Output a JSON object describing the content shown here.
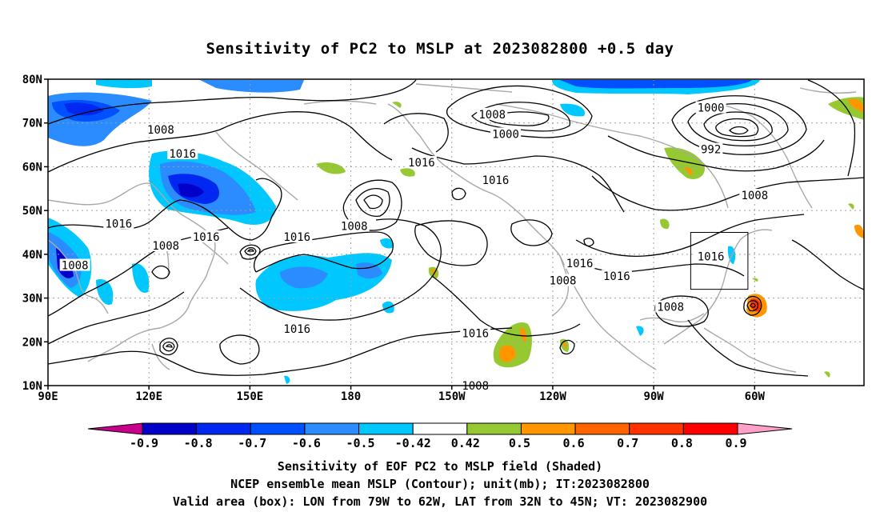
{
  "title": "Sensitivity of PC2 to MSLP at 2023082800 +0.5 day",
  "lat_labels": [
    "80N",
    "70N",
    "60N",
    "50N",
    "40N",
    "30N",
    "20N",
    "10N"
  ],
  "lon_labels": [
    "90E",
    "120E",
    "150E",
    "180",
    "150W",
    "120W",
    "90W",
    "60W"
  ],
  "contour_labels": [
    {
      "text": "1008",
      "lon": -138,
      "lat": 72
    },
    {
      "text": "1000",
      "lon": -134,
      "lat": 67.5
    },
    {
      "text": "1000",
      "lon": -73,
      "lat": 73.5
    },
    {
      "text": "992",
      "lon": -73,
      "lat": 64
    },
    {
      "text": "1008",
      "lon": 123.5,
      "lat": 68.5
    },
    {
      "text": "1016",
      "lon": 130,
      "lat": 63
    },
    {
      "text": "1016",
      "lon": -159,
      "lat": 61
    },
    {
      "text": "1016",
      "lon": -137,
      "lat": 57
    },
    {
      "text": "1008",
      "lon": -60,
      "lat": 53.5
    },
    {
      "text": "1016",
      "lon": 111,
      "lat": 47
    },
    {
      "text": "1016",
      "lon": 137,
      "lat": 44
    },
    {
      "text": "1008",
      "lon": 125,
      "lat": 42
    },
    {
      "text": "1008",
      "lon": 181,
      "lat": 46.5
    },
    {
      "text": "1016",
      "lon": 164,
      "lat": 44
    },
    {
      "text": "1008",
      "lon": 98,
      "lat": 37.5
    },
    {
      "text": "1016",
      "lon": -112,
      "lat": 38
    },
    {
      "text": "1016",
      "lon": -101,
      "lat": 35
    },
    {
      "text": "1008",
      "lon": -117,
      "lat": 34
    },
    {
      "text": "1016",
      "lon": -73,
      "lat": 39.5
    },
    {
      "text": "1008",
      "lon": -85,
      "lat": 28
    },
    {
      "text": "1016",
      "lon": 164,
      "lat": 23
    },
    {
      "text": "1016",
      "lon": -143,
      "lat": 22
    },
    {
      "text": "1008",
      "lon": -143,
      "lat": 10
    }
  ],
  "valid_box": {
    "lon_min": -79,
    "lon_max": -62,
    "lat_min": 32,
    "lat_max": 45
  },
  "colorbar": {
    "labels": [
      "-0.9",
      "-0.8",
      "-0.7",
      "-0.6",
      "-0.5",
      "-0.42",
      "0.42",
      "0.5",
      "0.6",
      "0.7",
      "0.8",
      "0.9"
    ],
    "colors": [
      "#c8008c",
      "#0000c8",
      "#0028f0",
      "#0050ff",
      "#2a8cff",
      "#00c8ff",
      "#ffffff",
      "#96c832",
      "#ff9600",
      "#ff6400",
      "#ff3200",
      "#ff0000",
      "#ffa0c8"
    ]
  },
  "footer": {
    "line1": "Sensitivity of EOF PC2 to MSLP field (Shaded)",
    "line2": "NCEP ensemble mean MSLP (Contour); unit(mb); IT:2023082800",
    "line3": "Valid area (box): LON from 79W to 62W, LAT from 32N to 45N; VT: 2023082900"
  }
}
